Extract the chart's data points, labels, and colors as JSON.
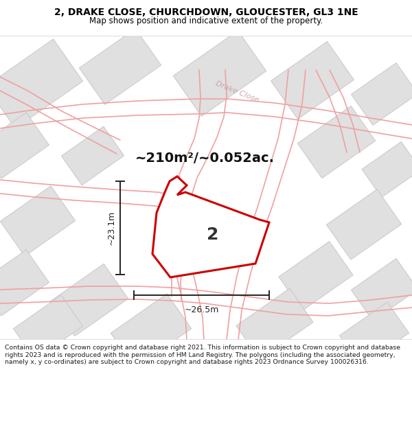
{
  "title_line1": "2, DRAKE CLOSE, CHURCHDOWN, GLOUCESTER, GL3 1NE",
  "title_line2": "Map shows position and indicative extent of the property.",
  "area_text": "~210m²/~0.052ac.",
  "dim_height": "~23.1m",
  "dim_width": "~26.5m",
  "property_label": "2",
  "footer_text": "Contains OS data © Crown copyright and database right 2021. This information is subject to Crown copyright and database rights 2023 and is reproduced with the permission of HM Land Registry. The polygons (including the associated geometry, namely x, y co-ordinates) are subject to Crown copyright and database rights 2023 Ordnance Survey 100026316.",
  "bg_color": "#ffffff",
  "map_bg": "#f8f6f6",
  "plot_edge": "#cc0000",
  "road_color": "#f0a0a0",
  "road_lw": 1.2,
  "building_fill": "#e0e0e0",
  "building_edge": "#c8c8c8",
  "dim_color": "#222222",
  "title_fontsize1": 10,
  "title_fontsize2": 8.5,
  "area_fontsize": 14,
  "label_fontsize": 18,
  "dim_fontsize": 9,
  "road_label_color": "#c8a8a8",
  "road_label_fontsize": 8
}
